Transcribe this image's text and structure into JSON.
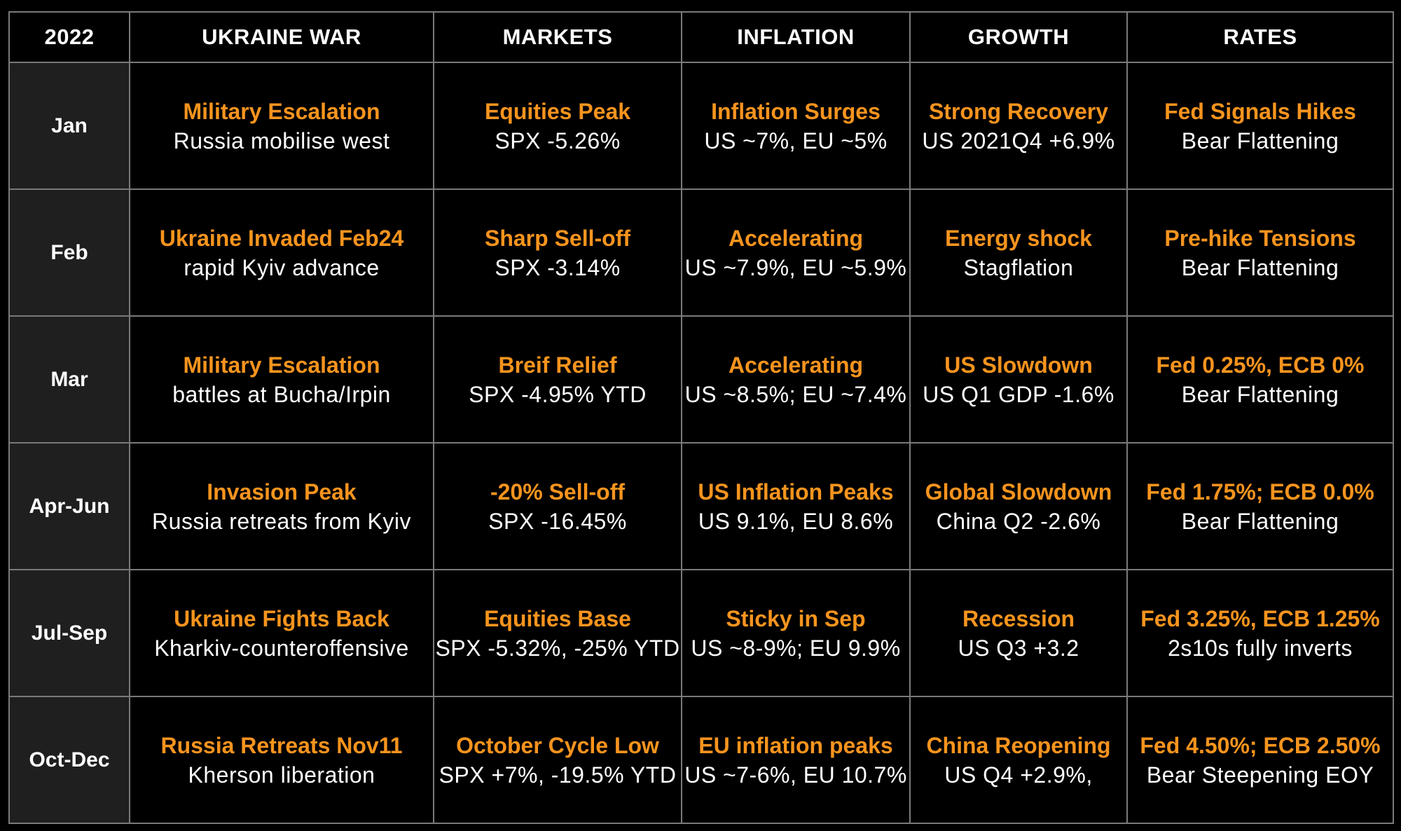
{
  "header": {
    "year": "2022",
    "columns": [
      "UKRAINE WAR",
      "MARKETS",
      "INFLATION",
      "GROWTH",
      "RATES"
    ]
  },
  "colors": {
    "background": "#000000",
    "headline": "#f7941e",
    "detail": "#ffffff",
    "period_cell": "#1f1f1f",
    "border": "#7a7a7a"
  },
  "rows": [
    {
      "period": "Jan",
      "cells": [
        {
          "headline": "Military Escalation",
          "detail": "Russia mobilise west"
        },
        {
          "headline": "Equities Peak",
          "detail": "SPX -5.26%"
        },
        {
          "headline": "Inflation Surges",
          "detail": "US ~7%, EU ~5%"
        },
        {
          "headline": "Strong Recovery",
          "detail": "US 2021Q4 +6.9%"
        },
        {
          "headline": "Fed Signals Hikes",
          "detail": "Bear Flattening"
        }
      ]
    },
    {
      "period": "Feb",
      "cells": [
        {
          "headline": "Ukraine Invaded Feb24",
          "detail": "rapid Kyiv advance"
        },
        {
          "headline": "Sharp Sell-off",
          "detail": "SPX -3.14%"
        },
        {
          "headline": "Accelerating",
          "detail": "US ~7.9%, EU ~5.9%"
        },
        {
          "headline": "Energy shock",
          "detail": "Stagflation"
        },
        {
          "headline": "Pre-hike Tensions",
          "detail": "Bear Flattening"
        }
      ]
    },
    {
      "period": "Mar",
      "cells": [
        {
          "headline": "Military Escalation",
          "detail": "battles at Bucha/Irpin"
        },
        {
          "headline": "Breif Relief",
          "detail": "SPX -4.95% YTD"
        },
        {
          "headline": "Accelerating",
          "detail": "US ~8.5%; EU ~7.4%"
        },
        {
          "headline": "US Slowdown",
          "detail": "US Q1 GDP -1.6%"
        },
        {
          "headline": "Fed 0.25%, ECB 0%",
          "detail": "Bear Flattening"
        }
      ]
    },
    {
      "period": "Apr-Jun",
      "cells": [
        {
          "headline": "Invasion Peak",
          "detail": "Russia retreats from Kyiv"
        },
        {
          "headline": "-20% Sell-off",
          "detail": "SPX -16.45%"
        },
        {
          "headline": "US Inflation Peaks",
          "detail": "US 9.1%, EU 8.6%"
        },
        {
          "headline": "Global Slowdown",
          "detail": "China Q2 -2.6%"
        },
        {
          "headline": "Fed 1.75%; ECB 0.0%",
          "detail": "Bear Flattening"
        }
      ]
    },
    {
      "period": "Jul-Sep",
      "cells": [
        {
          "headline": "Ukraine Fights Back",
          "detail": "Kharkiv-counteroffensive"
        },
        {
          "headline": "Equities Base",
          "detail": "SPX -5.32%, -25% YTD"
        },
        {
          "headline": "Sticky in Sep",
          "detail": "US ~8-9%; EU 9.9%"
        },
        {
          "headline": "Recession",
          "detail": "US Q3 +3.2"
        },
        {
          "headline": "Fed 3.25%, ECB 1.25%",
          "detail": "2s10s fully inverts"
        }
      ]
    },
    {
      "period": "Oct-Dec",
      "cells": [
        {
          "headline": "Russia Retreats Nov11",
          "detail": "Kherson liberation"
        },
        {
          "headline": "October Cycle Low",
          "detail": "SPX +7%, -19.5% YTD"
        },
        {
          "headline": "EU inflation peaks",
          "detail": "US ~7-6%, EU 10.7%"
        },
        {
          "headline": "China Reopening",
          "detail": "US Q4 +2.9%,"
        },
        {
          "headline": "Fed 4.50%; ECB 2.50%",
          "detail": "Bear Steepening EOY"
        }
      ]
    }
  ]
}
